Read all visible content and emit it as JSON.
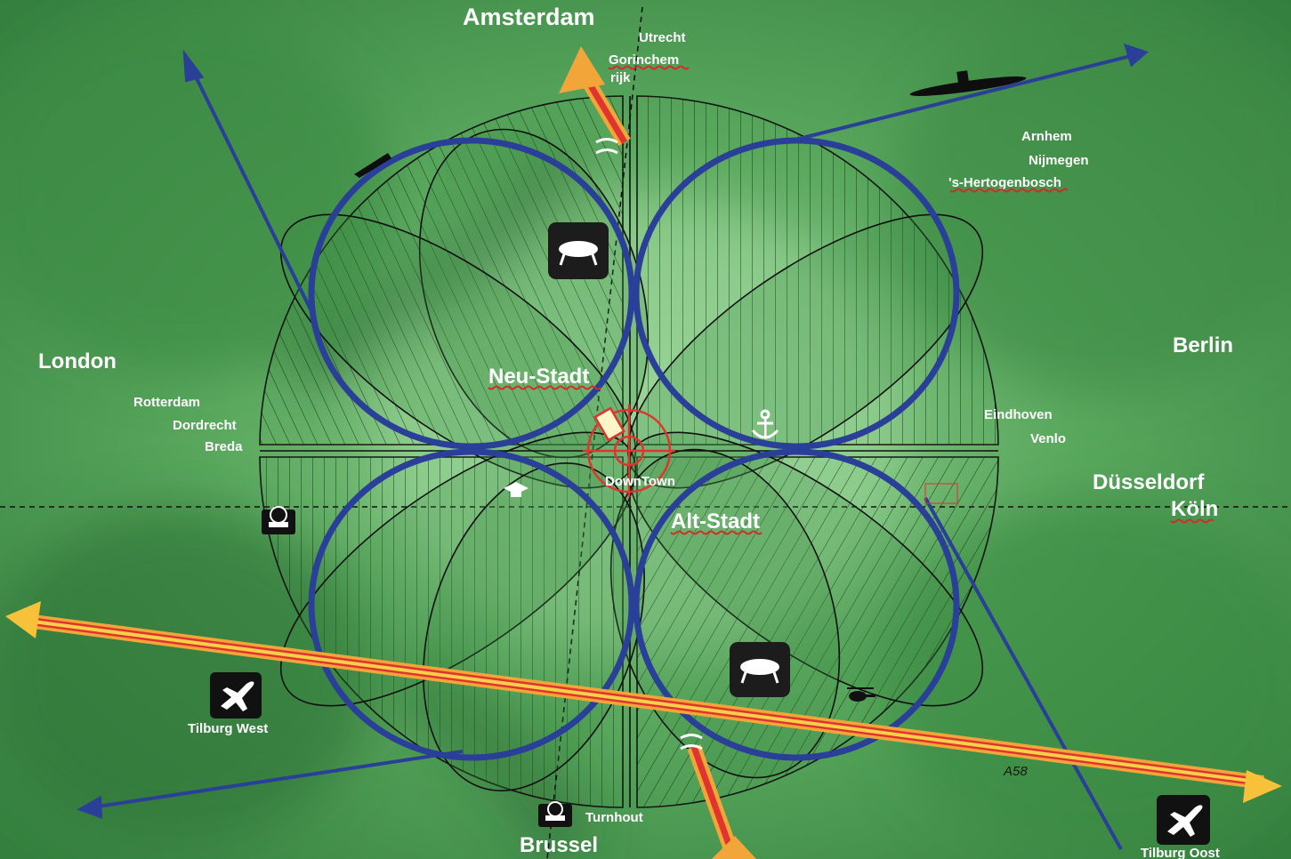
{
  "colors": {
    "ring": "#2a3f97",
    "highway_orange": "#f2a63a",
    "highway_red": "#e0342f",
    "highway_yellow": "#f7d04a",
    "label": "#ffffff",
    "downtown_target": "#e0342f"
  },
  "city_labels": {
    "amsterdam": "Amsterdam",
    "utrecht": "Utrecht",
    "gorinchem": "Gorinchem",
    "rijk": "rijk",
    "arnhem": "Arnhem",
    "nijmegen": "Nijmegen",
    "hertogenbosch": "'s-Hertogenbosch",
    "london": "London",
    "berlin": "Berlin",
    "rotterdam": "Rotterdam",
    "dordrecht": "Dordrecht",
    "breda": "Breda",
    "eindhoven": "Eindhoven",
    "venlo": "Venlo",
    "dusseldorf": "Düsseldorf",
    "koln": "Köln",
    "brussel": "Brussel",
    "turnhout": "Turnhout"
  },
  "district_labels": {
    "neu_stadt": "Neu-Stadt",
    "alt_stadt": "Alt-Stadt",
    "downtown": "DownTown"
  },
  "airports": {
    "west": "Tilburg West",
    "east": "Tilburg Oost"
  },
  "road_labels": {
    "a58": "A58"
  },
  "icons": {
    "ufo_north": "ufo-icon",
    "ufo_south": "ufo-icon",
    "anchor": "anchor-icon",
    "graduation_cap": "graduation-cap-icon",
    "helicopter": "helicopter-icon",
    "submarine": "submarine-icon",
    "boat": "boat-icon",
    "station_west": "train-station-icon",
    "station_south": "train-station-icon",
    "airplane_west": "airplane-icon",
    "airplane_east": "airplane-icon",
    "downtown_target": "crosshair-icon"
  }
}
